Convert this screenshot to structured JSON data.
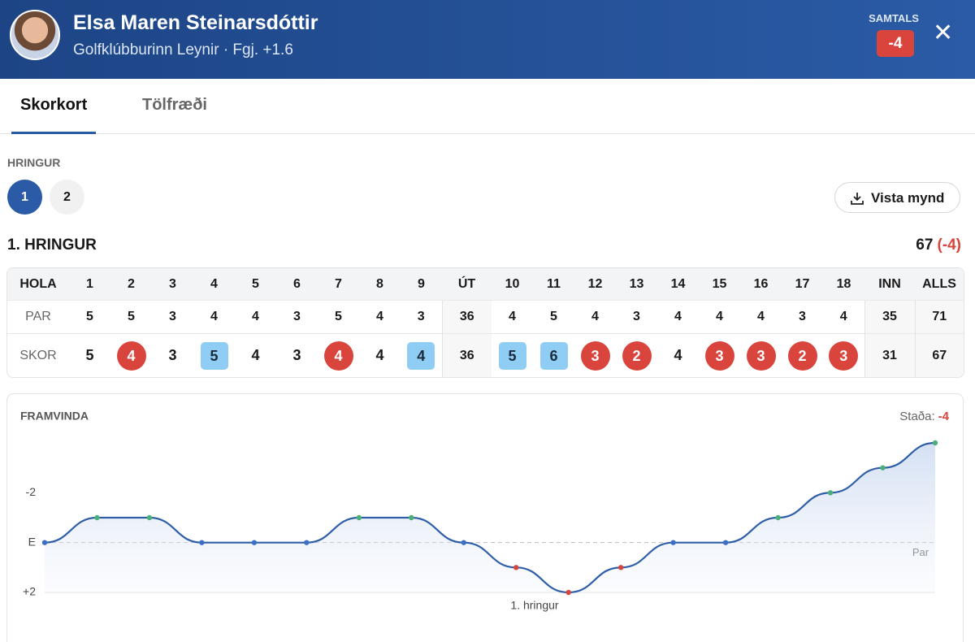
{
  "header": {
    "name": "Elsa Maren Steinarsdóttir",
    "subtitle": "Golfklúbburinn Leynir · Fgj. +1.6",
    "total_label": "SAMTALS",
    "total": "-4"
  },
  "tabs": [
    "Skorkort",
    "Tölfræði"
  ],
  "rounds": {
    "label": "HRINGUR",
    "items": [
      "1",
      "2"
    ],
    "download": "Vista mynd"
  },
  "round": {
    "title": "1. HRINGUR",
    "score": "67",
    "to_par": "(-4)"
  },
  "table": {
    "columns": [
      "HOLA",
      "1",
      "2",
      "3",
      "4",
      "5",
      "6",
      "7",
      "8",
      "9",
      "ÚT",
      "10",
      "11",
      "12",
      "13",
      "14",
      "15",
      "16",
      "17",
      "18",
      "INN",
      "ALLS"
    ],
    "rows": [
      {
        "label": "PAR",
        "cells": [
          5,
          5,
          3,
          4,
          4,
          3,
          5,
          4,
          3,
          36,
          4,
          5,
          4,
          3,
          4,
          4,
          4,
          3,
          4,
          35,
          71
        ]
      },
      {
        "label": "SKOR",
        "cells": [
          5,
          4,
          3,
          5,
          4,
          3,
          4,
          4,
          4,
          36,
          5,
          6,
          3,
          2,
          4,
          3,
          3,
          2,
          3,
          31,
          67
        ]
      }
    ]
  },
  "chart_data": {
    "type": "line",
    "title": "FRAMVINDA",
    "status_label": "Staða:",
    "status_value": "-4",
    "x": [
      1,
      2,
      3,
      4,
      5,
      6,
      7,
      8,
      9,
      10,
      11,
      12,
      13,
      14,
      15,
      16,
      17,
      18
    ],
    "xlim": [
      1,
      18
    ],
    "series": [
      {
        "name": "1. hringur",
        "color": "#2f5ea8",
        "values": [
          0,
          -1,
          -1,
          0,
          0,
          0,
          -1,
          -1,
          0,
          1,
          2,
          1,
          0,
          0,
          -1,
          -2,
          -3,
          -4
        ]
      }
    ],
    "ylim": [
      2,
      -4
    ],
    "yticks": [
      -2,
      {
        "value": 0,
        "label": "E"
      },
      {
        "value": 2,
        "label": "+2"
      }
    ],
    "par_label": "Par"
  }
}
